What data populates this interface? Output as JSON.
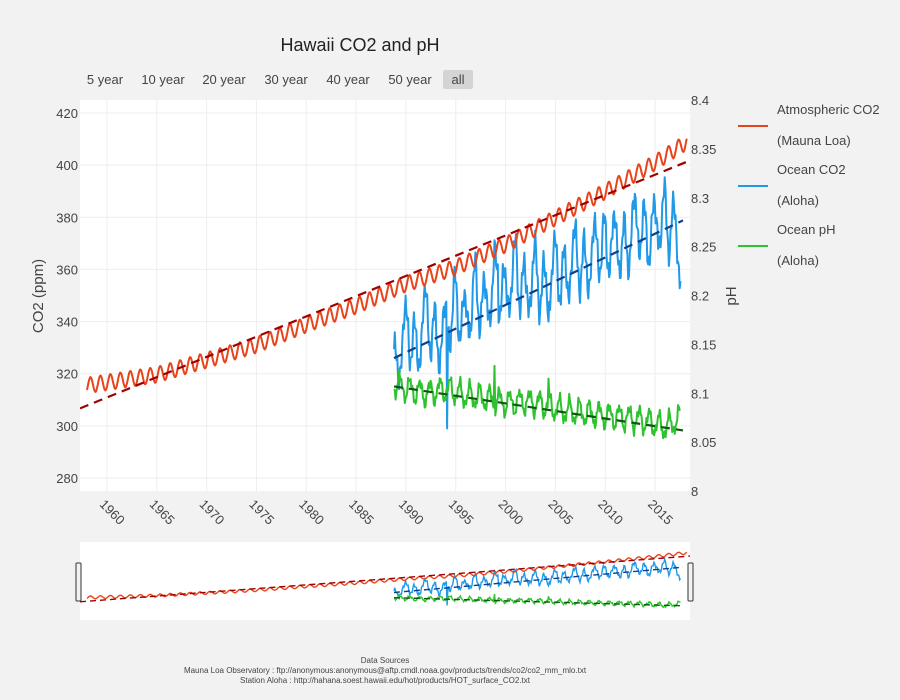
{
  "chart_data": {
    "type": "line",
    "title": "Hawaii CO2 and pH",
    "range_buttons": [
      "5 year",
      "10 year",
      "20 year",
      "30 year",
      "40 year",
      "50 year",
      "all"
    ],
    "active_range": "all",
    "x_axis": {
      "range": [
        1957.3,
        2018.5
      ],
      "ticks": [
        1960,
        1965,
        1970,
        1975,
        1980,
        1985,
        1990,
        1995,
        2000,
        2005,
        2010,
        2015
      ]
    },
    "y_axis_left": {
      "label": "CO2 (ppm)",
      "range": [
        275,
        425
      ],
      "ticks": [
        280,
        300,
        320,
        340,
        360,
        380,
        400,
        420
      ]
    },
    "y_axis_right": {
      "label": "pH",
      "range": [
        8.0,
        8.4
      ],
      "ticks": [
        "8",
        "8.05",
        "8.1",
        "8.15",
        "8.2",
        "8.25",
        "8.3",
        "8.35",
        "8.4"
      ]
    },
    "series": [
      {
        "name": "Atmospheric CO2",
        "name_line2": "(Mauna Loa)",
        "color": "#e8441c",
        "axis": "left",
        "seasonal_amplitude": 3,
        "anchors": [
          [
            1958,
            315.5
          ],
          [
            1965,
            319.6
          ],
          [
            1970,
            325.2
          ],
          [
            1975,
            331
          ],
          [
            1980,
            338.8
          ],
          [
            1985,
            346
          ],
          [
            1990,
            354.4
          ],
          [
            1995,
            360.8
          ],
          [
            2000,
            369.5
          ],
          [
            2005,
            379.8
          ],
          [
            2010,
            389.9
          ],
          [
            2015,
            401
          ],
          [
            2018.2,
            409
          ]
        ]
      },
      {
        "name": "Ocean CO2",
        "name_line2": "(Aloha)",
        "color": "#1f99e8",
        "axis": "left",
        "anchors": [
          [
            1988.8,
            318
          ],
          [
            1989.5,
            330
          ],
          [
            1990.2,
            340
          ],
          [
            1991,
            326
          ],
          [
            1992,
            345
          ],
          [
            1993,
            331
          ],
          [
            1994,
            338
          ],
          [
            1995,
            347
          ],
          [
            1996,
            340
          ],
          [
            1997,
            352
          ],
          [
            1998,
            345
          ],
          [
            1999,
            357
          ],
          [
            2000,
            349
          ],
          [
            2001,
            362
          ],
          [
            2002,
            350
          ],
          [
            2003,
            360
          ],
          [
            2004,
            350
          ],
          [
            2005,
            363
          ],
          [
            2006,
            355
          ],
          [
            2007,
            368
          ],
          [
            2008,
            358
          ],
          [
            2009,
            370
          ],
          [
            2010,
            368
          ],
          [
            2011,
            372
          ],
          [
            2012,
            366
          ],
          [
            2013,
            380
          ],
          [
            2014,
            372
          ],
          [
            2015,
            377
          ],
          [
            2016,
            380
          ],
          [
            2017,
            375
          ],
          [
            2017.6,
            362
          ]
        ]
      },
      {
        "name": "Ocean pH",
        "name_line2": "(Aloha)",
        "color": "#2ec22e",
        "axis": "right",
        "anchors": [
          [
            1988.8,
            8.11
          ],
          [
            1990,
            8.105
          ],
          [
            1992,
            8.1
          ],
          [
            1994,
            8.105
          ],
          [
            1996,
            8.098
          ],
          [
            1998,
            8.095
          ],
          [
            2000,
            8.09
          ],
          [
            2002,
            8.092
          ],
          [
            2004,
            8.088
          ],
          [
            2006,
            8.082
          ],
          [
            2008,
            8.08
          ],
          [
            2010,
            8.077
          ],
          [
            2012,
            8.075
          ],
          [
            2014,
            8.072
          ],
          [
            2016,
            8.065
          ],
          [
            2017.6,
            8.075
          ]
        ]
      }
    ],
    "trend_lines": [
      {
        "color": "#a00000",
        "axis": "left",
        "x": [
          1957.3,
          2018.5
        ],
        "y": [
          306.7,
          401.8
        ]
      },
      {
        "color": "#0d3f8c",
        "axis": "left",
        "x": [
          1988.8,
          2017.8
        ],
        "y": [
          326,
          378.8
        ]
      },
      {
        "color": "#0a5a0a",
        "axis": "right",
        "x": [
          1988.8,
          2017.8
        ],
        "y": [
          8.107,
          8.062
        ]
      }
    ],
    "legend_position": "right",
    "grid": true
  },
  "sources": {
    "heading": "Data Sources",
    "mauna_loa": "Mauna Loa Observatory : ftp://anonymous:anonymous@aftp.cmdl.noaa.gov/products/trends/co2/co2_mm_mlo.txt",
    "aloha": "Station Aloha : http://hahana.soest.hawaii.edu/hot/products/HOT_surface_CO2.txt"
  }
}
